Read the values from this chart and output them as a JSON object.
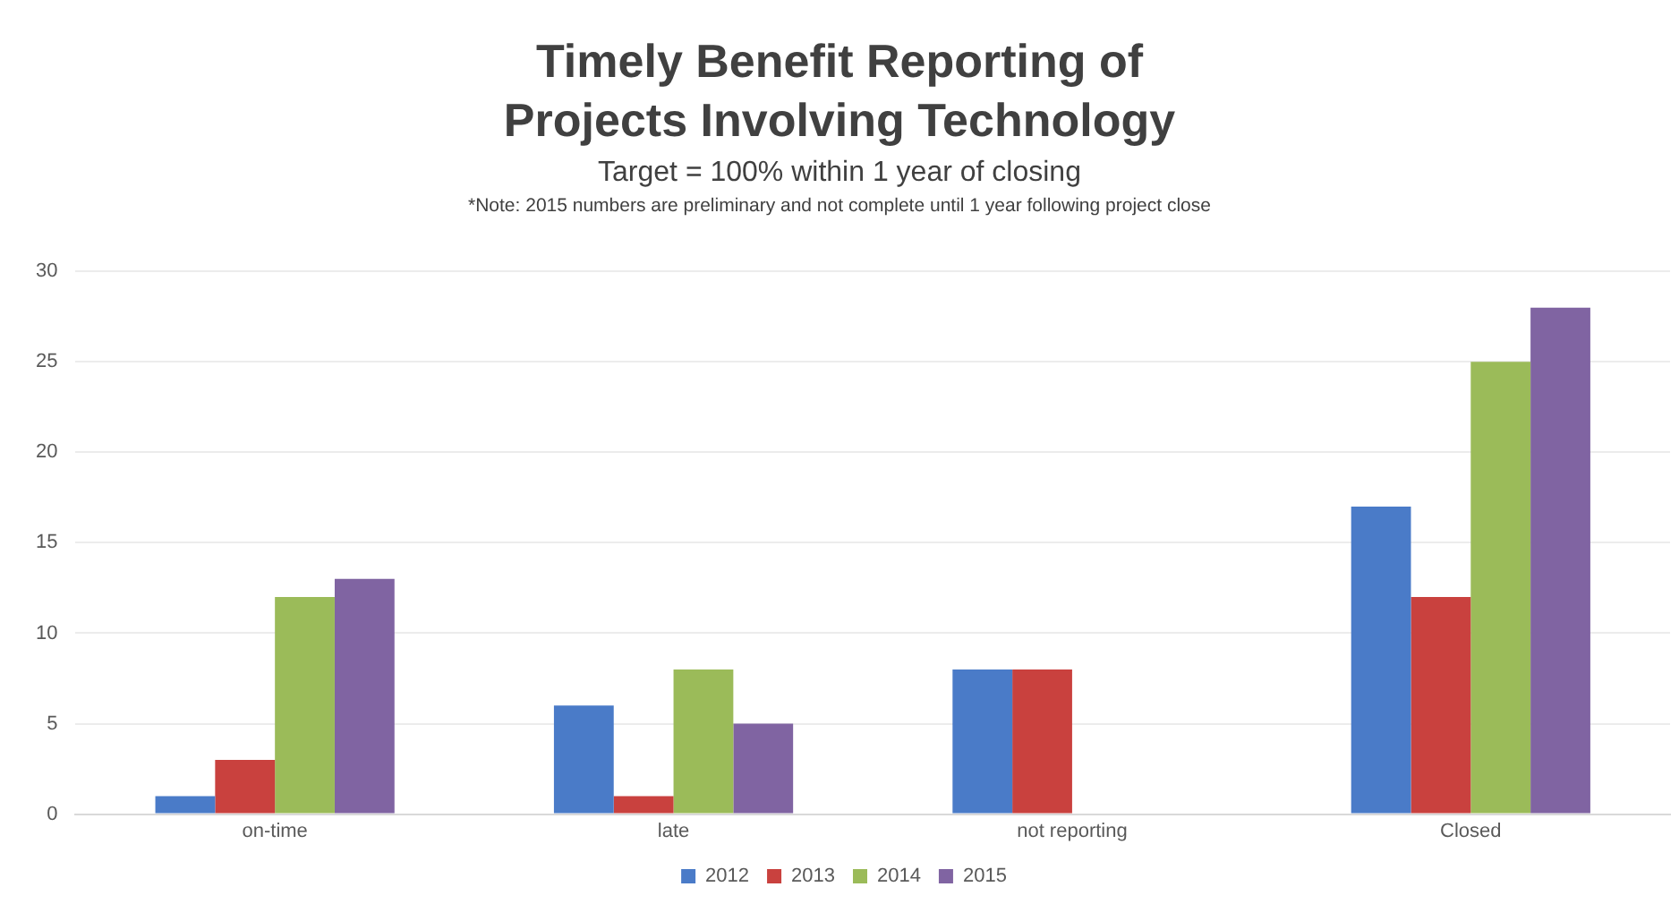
{
  "chart_data": {
    "type": "bar",
    "title": "Timely Benefit Reporting of Projects Involving Technology",
    "subtitle": "Target = 100% within 1 year of closing",
    "annotations": [
      "*Note: 2015 numbers are preliminary and not complete  until 1 year following project close"
    ],
    "categories": [
      "on-time",
      "late",
      "not reporting",
      "Closed"
    ],
    "series": [
      {
        "name": "2012",
        "color": "#4a7bc8",
        "values": [
          1,
          6,
          8,
          17
        ]
      },
      {
        "name": "2013",
        "color": "#c9413e",
        "values": [
          3,
          1,
          8,
          12
        ]
      },
      {
        "name": "2014",
        "color": "#9bbb59",
        "values": [
          12,
          8,
          null,
          25
        ]
      },
      {
        "name": "2015",
        "color": "#8064a2",
        "values": [
          13,
          5,
          null,
          28
        ]
      }
    ],
    "ylim": [
      0,
      30
    ],
    "yticks": [
      0,
      5,
      10,
      15,
      20,
      25,
      30
    ],
    "grid": "y",
    "legend": "bottom"
  }
}
